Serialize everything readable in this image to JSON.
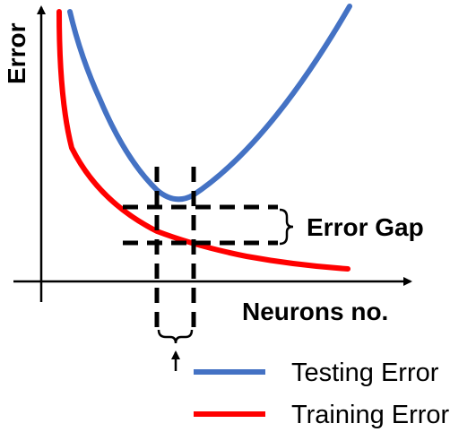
{
  "labels": {
    "y_axis": "Error",
    "x_axis": "Neurons no.",
    "gap": "Error Gap"
  },
  "legend": [
    {
      "label": "Testing Error",
      "color": "#4472C4"
    },
    {
      "label": "Training Error",
      "color": "#FF0000"
    }
  ],
  "colors": {
    "axis": "#000000",
    "dashed": "#000000",
    "testing": "#4472C4",
    "training": "#FF0000"
  }
}
